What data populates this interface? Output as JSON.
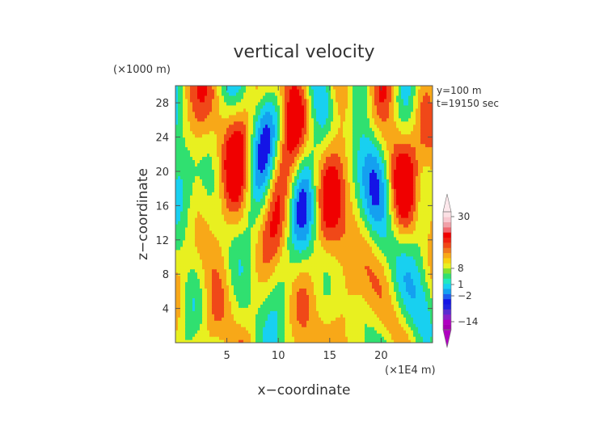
{
  "chart_data": {
    "type": "heatmap",
    "title": "vertical velocity",
    "xlabel": "x−coordinate",
    "ylabel": "z−coordinate",
    "x_unit": "(×1E4 m)",
    "y_unit": "(×1000 m)",
    "xlim": [
      0,
      25
    ],
    "ylim": [
      0,
      30
    ],
    "x_ticks": [
      5,
      10,
      15,
      20
    ],
    "y_ticks": [
      4,
      8,
      12,
      16,
      20,
      24,
      28
    ],
    "x_tick_labels": [
      "5",
      "10",
      "15",
      "20"
    ],
    "y_tick_labels": [
      "4",
      "8",
      "12",
      "16",
      "20",
      "24",
      "28"
    ],
    "annotations": [
      "y=100 m",
      "t=19150 sec"
    ],
    "grid": false,
    "colorbar": {
      "labels": [
        "30",
        "8",
        "1",
        "−2",
        "−14"
      ],
      "label_values": [
        30,
        8,
        1,
        -2,
        -14
      ],
      "levels": [
        {
          "color": "#a400b0"
        },
        {
          "color": "#b000c0"
        },
        {
          "color": "#8a20c8"
        },
        {
          "color": "#5a2cd0"
        },
        {
          "color": "#2020e0"
        },
        {
          "color": "#1414e6"
        },
        {
          "color": "#1e5cf0"
        },
        {
          "color": "#14a0f0"
        },
        {
          "color": "#18d0f0"
        },
        {
          "color": "#20e8c0"
        },
        {
          "color": "#30e070"
        },
        {
          "color": "#80e030"
        },
        {
          "color": "#e8f020"
        },
        {
          "color": "#f8d010"
        },
        {
          "color": "#f8a818"
        },
        {
          "color": "#f07820"
        },
        {
          "color": "#f04818"
        },
        {
          "color": "#f02010"
        },
        {
          "color": "#f00000"
        },
        {
          "color": "#f06870"
        },
        {
          "color": "#f0a0a8"
        },
        {
          "color": "#f8c8d0"
        },
        {
          "color": "#fbe0e4"
        }
      ],
      "top_extension_color": "#fde8ec",
      "bottom_extension_color": "#b000c0"
    },
    "field_colors": {
      "strong_down": "#1414e6",
      "down": "#14a0f0",
      "weak_down": "#18d0f0",
      "neutral": "#30e070",
      "weak_up": "#e8f020",
      "up": "#f8a818",
      "strong_up": "#f04818",
      "peak_up": "#f00000"
    }
  }
}
